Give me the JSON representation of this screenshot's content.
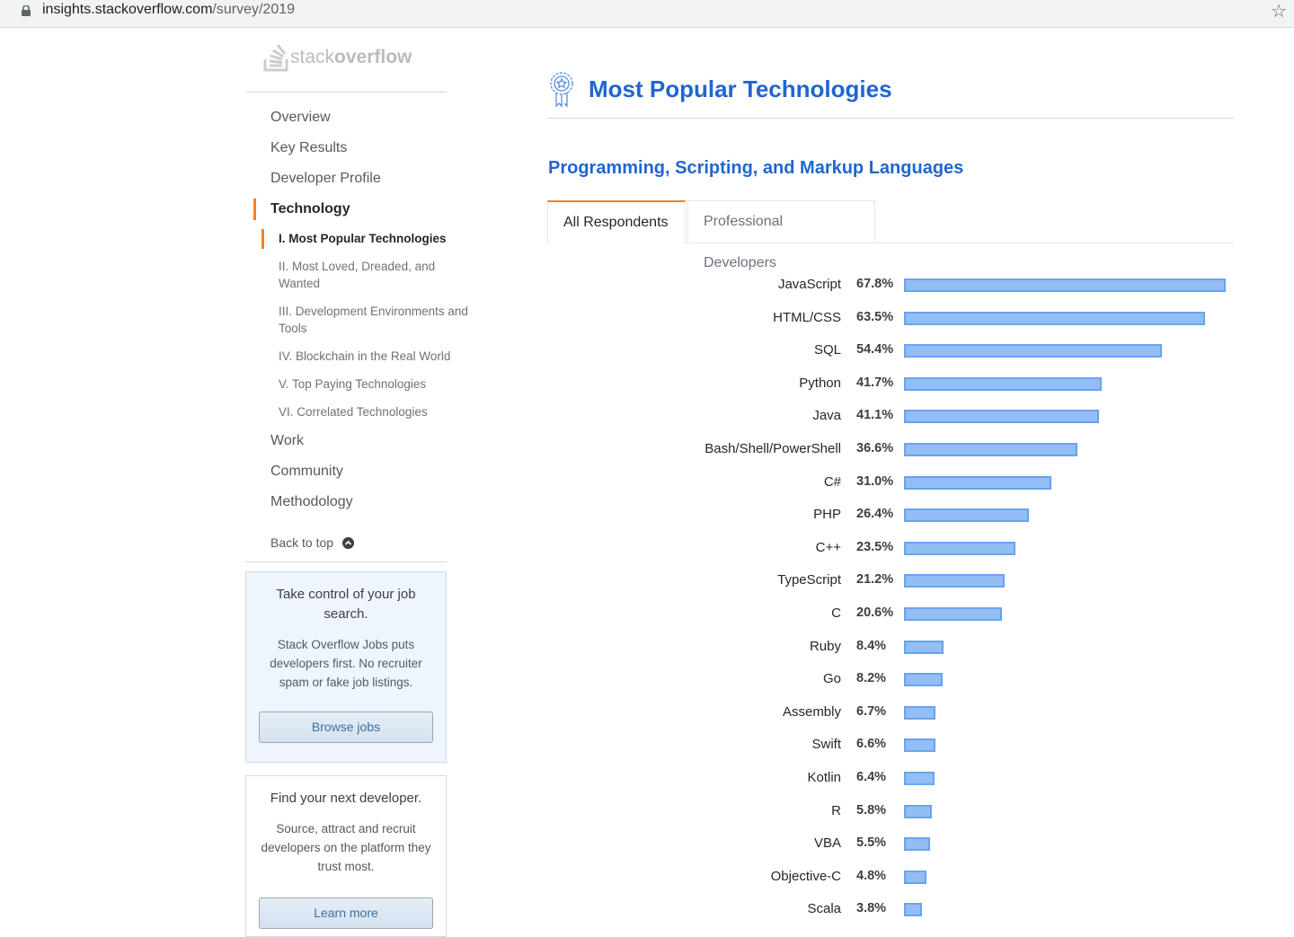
{
  "browser": {
    "url_host": "insights.stackoverflow.com",
    "url_path": "/survey/2019"
  },
  "logo": {
    "light": "stack",
    "bold": "overflow"
  },
  "sidebar": {
    "items": [
      {
        "label": "Overview"
      },
      {
        "label": "Key Results"
      },
      {
        "label": "Developer Profile"
      },
      {
        "label": "Technology"
      },
      {
        "label": "Work"
      },
      {
        "label": "Community"
      },
      {
        "label": "Methodology"
      }
    ],
    "subitems": [
      {
        "label": "I. Most Popular Technologies"
      },
      {
        "label": "II. Most Loved, Dreaded, and Wanted"
      },
      {
        "label": "III. Development Environments and Tools"
      },
      {
        "label": "IV. Blockchain in the Real World"
      },
      {
        "label": "V. Top Paying Technologies"
      },
      {
        "label": "VI. Correlated Technologies"
      }
    ],
    "back_to_top": "Back to top"
  },
  "jobs_card": {
    "title": "Take control of your job search.",
    "text": "Stack Overflow Jobs puts developers first. No recruiter spam or fake job listings.",
    "button": "Browse jobs"
  },
  "dev_card": {
    "title": "Find your next developer.",
    "text": "Source, attract and recruit developers on the platform they trust most.",
    "button": "Learn more"
  },
  "main": {
    "title": "Most Popular Technologies",
    "subtitle": "Programming, Scripting, and Markup Languages",
    "tabs": [
      {
        "label": "All Respondents"
      },
      {
        "label": "Professional Developers"
      }
    ]
  },
  "colors": {
    "accent": "#f48024",
    "title": "#1f66d0",
    "bar": "#93bdf5"
  },
  "chart_data": {
    "type": "bar",
    "orientation": "horizontal",
    "title": "Programming, Scripting, and Markup Languages",
    "unit": "%",
    "categories": [
      "JavaScript",
      "HTML/CSS",
      "SQL",
      "Python",
      "Java",
      "Bash/Shell/PowerShell",
      "C#",
      "PHP",
      "C++",
      "TypeScript",
      "C",
      "Ruby",
      "Go",
      "Assembly",
      "Swift",
      "Kotlin",
      "R",
      "VBA",
      "Objective-C",
      "Scala"
    ],
    "values": [
      67.8,
      63.5,
      54.4,
      41.7,
      41.1,
      36.6,
      31.0,
      26.4,
      23.5,
      21.2,
      20.6,
      8.4,
      8.2,
      6.7,
      6.6,
      6.4,
      5.8,
      5.5,
      4.8,
      3.8
    ],
    "labels": [
      "67.8%",
      "63.5%",
      "54.4%",
      "41.7%",
      "41.1%",
      "36.6%",
      "31.0%",
      "26.4%",
      "23.5%",
      "21.2%",
      "20.6%",
      "8.4%",
      "8.2%",
      "6.7%",
      "6.6%",
      "6.4%",
      "5.8%",
      "5.5%",
      "4.8%",
      "3.8%"
    ]
  }
}
